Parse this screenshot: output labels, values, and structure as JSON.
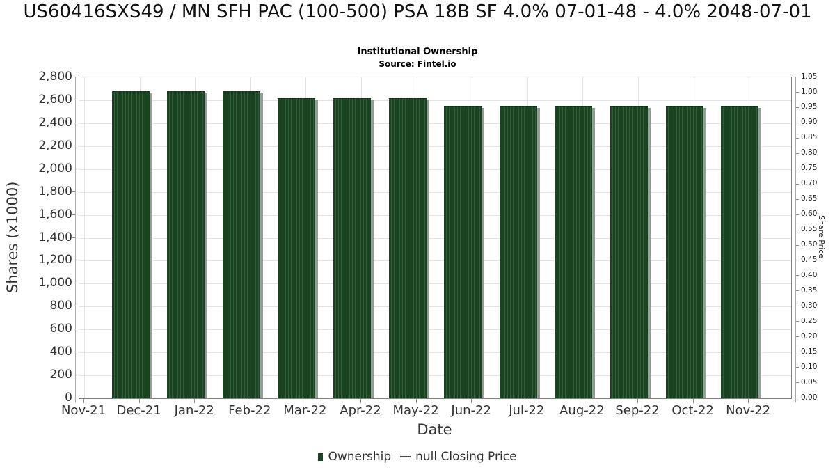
{
  "title": "US60416SXS49 / MN SFH PAC (100-500) PSA 18B SF 4.0% 07-01-48 - 4.0% 2048-07-01",
  "subtitle": "Institutional Ownership",
  "source": "Source: Fintel.io",
  "chart_data": {
    "type": "bar",
    "title": "Institutional Ownership",
    "xlabel": "Date",
    "ylabel_left": "Shares (x1000)",
    "ylabel_right": "Share Price",
    "categories": [
      "Nov-21",
      "Dec-21",
      "Jan-22",
      "Feb-22",
      "Mar-22",
      "Apr-22",
      "May-22",
      "Jun-22",
      "Jul-22",
      "Aug-22",
      "Sep-22",
      "Oct-22",
      "Nov-22"
    ],
    "series": [
      {
        "name": "Ownership",
        "type": "bar",
        "values": [
          null,
          2670,
          2670,
          2670,
          2610,
          2610,
          2610,
          2545,
          2545,
          2545,
          2545,
          2545,
          2545
        ]
      },
      {
        "name": "null Closing Price",
        "type": "line",
        "values": []
      }
    ],
    "ylim_left": [
      0,
      2800
    ],
    "ytick_step_left": 200,
    "ylim_right": [
      0,
      1.05
    ],
    "ytick_step_right": 0.05,
    "grid": true,
    "legend_position": "bottom",
    "bar_color": "#1a4421",
    "bar_hatch": "vertical-stripes"
  },
  "axes": {
    "left_tick_labels": [
      "2,800",
      "2,600",
      "2,400",
      "2,200",
      "2,000",
      "1,800",
      "1,600",
      "1,400",
      "1,200",
      "1,000",
      "800",
      "600",
      "400",
      "200",
      "0"
    ],
    "right_tick_labels": [
      "1.05",
      "1.00",
      "0.95",
      "0.90",
      "0.85",
      "0.80",
      "0.75",
      "0.70",
      "0.65",
      "0.60",
      "0.55",
      "0.50",
      "0.45",
      "0.40",
      "0.35",
      "0.30",
      "0.25",
      "0.20",
      "0.15",
      "0.10",
      "0.05",
      "0.00"
    ]
  },
  "legend": [
    {
      "label": "Ownership",
      "marker": "square",
      "color": "#1a4421"
    },
    {
      "label": "null Closing Price",
      "marker": "dash",
      "color": "#4a4a4a"
    }
  ],
  "colors": {
    "bar": "#1a4421",
    "bar_stripe": "#2f5c35",
    "bar_shadow": "#9b9b9b",
    "gridline": "#e3e3e3",
    "frame": "#7f7f7f",
    "text": "#333333"
  }
}
